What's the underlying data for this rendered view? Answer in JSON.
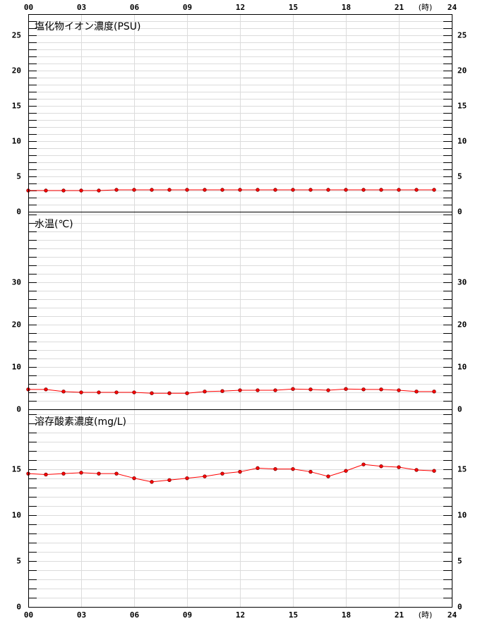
{
  "chart_data": [
    {
      "type": "line",
      "title": "塩化物イオン濃度(PSU)",
      "x": [
        0,
        1,
        2,
        3,
        4,
        5,
        6,
        7,
        8,
        9,
        10,
        11,
        12,
        13,
        14,
        15,
        16,
        17,
        18,
        19,
        20,
        21,
        22,
        23
      ],
      "xlim": [
        0,
        24
      ],
      "xticks": [
        {
          "value": 0,
          "label": "00"
        },
        {
          "value": 3,
          "label": "03"
        },
        {
          "value": 6,
          "label": "06"
        },
        {
          "value": 9,
          "label": "09"
        },
        12,
        15,
        18,
        21,
        24
      ],
      "x_axis_labels": "top",
      "x_unit": "(時)",
      "ylim": [
        0,
        28
      ],
      "yticks": [
        0,
        5,
        10,
        15,
        20,
        25
      ],
      "yminor_step": 1,
      "grid": true,
      "series": [
        {
          "color": "#ff0000",
          "values": [
            3.0,
            3.0,
            3.0,
            3.0,
            3.0,
            3.1,
            3.1,
            3.1,
            3.1,
            3.1,
            3.1,
            3.1,
            3.1,
            3.1,
            3.1,
            3.1,
            3.1,
            3.1,
            3.1,
            3.1,
            3.1,
            3.1,
            3.1,
            3.1
          ]
        }
      ]
    },
    {
      "type": "line",
      "title": "水温(℃)",
      "x": [
        0,
        1,
        2,
        3,
        4,
        5,
        6,
        7,
        8,
        9,
        10,
        11,
        12,
        13,
        14,
        15,
        16,
        17,
        18,
        19,
        20,
        21,
        22,
        23
      ],
      "xlim": [
        0,
        24
      ],
      "xticks": [
        0,
        3,
        6,
        9,
        12,
        15,
        18,
        21,
        24
      ],
      "x_axis_labels": "none",
      "ylim": [
        0,
        46.7
      ],
      "yticks": [
        0,
        10,
        20,
        30
      ],
      "yminor_step": 2,
      "grid": true,
      "series": [
        {
          "color": "#ff0000",
          "values": [
            4.7,
            4.7,
            4.2,
            4.0,
            4.0,
            4.0,
            4.0,
            3.8,
            3.8,
            3.8,
            4.2,
            4.3,
            4.5,
            4.5,
            4.5,
            4.8,
            4.7,
            4.5,
            4.8,
            4.7,
            4.7,
            4.5,
            4.2,
            4.2
          ]
        }
      ]
    },
    {
      "type": "line",
      "title": "溶存酸素濃度(mg/L)",
      "x": [
        0,
        1,
        2,
        3,
        4,
        5,
        6,
        7,
        8,
        9,
        10,
        11,
        12,
        13,
        14,
        15,
        16,
        17,
        18,
        19,
        20,
        21,
        22,
        23
      ],
      "xlim": [
        0,
        24
      ],
      "xticks": [
        {
          "value": 0,
          "label": "00"
        },
        {
          "value": 3,
          "label": "03"
        },
        {
          "value": 6,
          "label": "06"
        },
        {
          "value": 9,
          "label": "09"
        },
        12,
        15,
        18,
        21,
        24
      ],
      "x_axis_labels": "bottom",
      "x_unit": "(時)",
      "ylim": [
        0,
        21.5
      ],
      "yticks": [
        0,
        5,
        10,
        15
      ],
      "yminor_step": 1,
      "grid": true,
      "series": [
        {
          "color": "#ff0000",
          "values": [
            14.5,
            14.4,
            14.5,
            14.6,
            14.5,
            14.5,
            14.0,
            13.6,
            13.8,
            14.0,
            14.2,
            14.5,
            14.7,
            15.1,
            15.0,
            15.0,
            14.7,
            14.2,
            14.8,
            15.5,
            15.3,
            15.2,
            14.9,
            14.8
          ]
        }
      ]
    }
  ]
}
